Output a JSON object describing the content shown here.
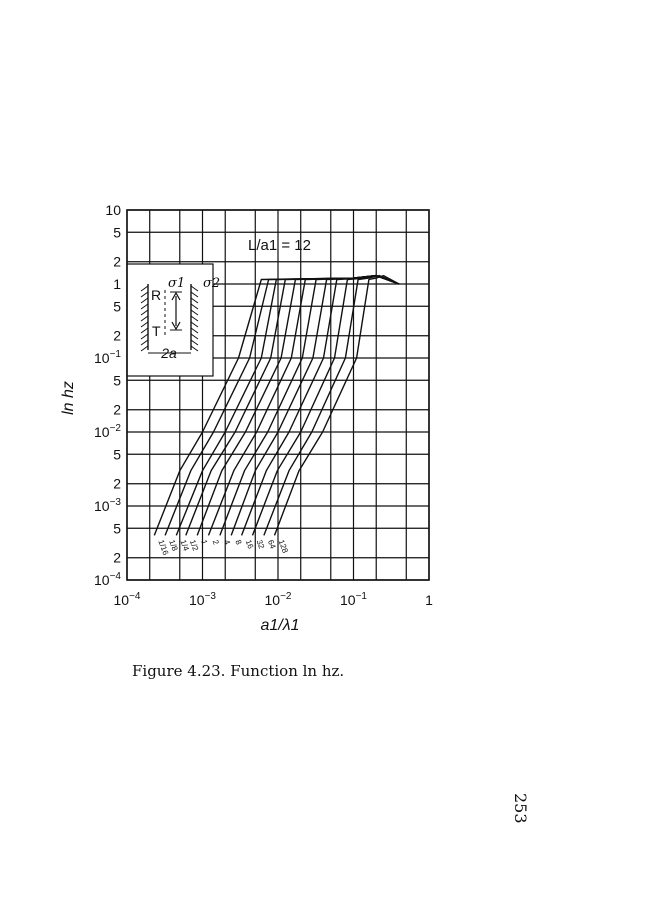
{
  "chart_data": {
    "type": "line",
    "title": "",
    "xlabel": "a1/λ1",
    "ylabel": "ln hz",
    "x_scale": "log",
    "y_scale": "log",
    "xlim": [
      0.0001,
      1
    ],
    "ylim": [
      0.0001,
      10
    ],
    "grid": true,
    "x_ticks": [
      {
        "base": "10",
        "exp": "−4"
      },
      {
        "base": "10",
        "exp": "−3"
      },
      {
        "base": "10",
        "exp": "−2"
      },
      {
        "base": "10",
        "exp": "−1"
      },
      {
        "base": "1",
        "exp": ""
      }
    ],
    "y_ticks": [
      {
        "base": "10",
        "exp": "",
        "value": 10
      },
      {
        "base": "5",
        "exp": "",
        "value": 5
      },
      {
        "base": "2",
        "exp": "",
        "value": 2
      },
      {
        "base": "1",
        "exp": "",
        "value": 1
      },
      {
        "base": "5",
        "exp": "",
        "value": 0.5
      },
      {
        "base": "2",
        "exp": "",
        "value": 0.2
      },
      {
        "base": "10",
        "exp": "−1",
        "value": 0.1
      },
      {
        "base": "5",
        "exp": "",
        "value": 0.05
      },
      {
        "base": "2",
        "exp": "",
        "value": 0.02
      },
      {
        "base": "10",
        "exp": "−2",
        "value": 0.01
      },
      {
        "base": "5",
        "exp": "",
        "value": 0.005
      },
      {
        "base": "2",
        "exp": "",
        "value": 0.002
      },
      {
        "base": "10",
        "exp": "−3",
        "value": 0.001
      },
      {
        "base": "5",
        "exp": "",
        "value": 0.0005
      },
      {
        "base": "2",
        "exp": "",
        "value": 0.0002
      },
      {
        "base": "10",
        "exp": "−4",
        "value": 0.0001
      }
    ],
    "parameter_annotation": "L/a1 = 12",
    "series": [
      {
        "name": "1/16",
        "x": [
          0.00023,
          0.0005,
          0.001,
          0.003,
          0.006,
          0.1,
          0.2,
          0.4
        ],
        "y": [
          0.0004,
          0.003,
          0.01,
          0.1,
          1.15,
          1.2,
          1.3,
          1.0
        ]
      },
      {
        "name": "1/8",
        "x": [
          0.00032,
          0.0007,
          0.0014,
          0.0042,
          0.0075,
          0.1,
          0.2,
          0.4
        ],
        "y": [
          0.0004,
          0.003,
          0.01,
          0.1,
          1.15,
          1.2,
          1.3,
          1.0
        ]
      },
      {
        "name": "1/4",
        "x": [
          0.00045,
          0.001,
          0.002,
          0.006,
          0.0095,
          0.1,
          0.2,
          0.4
        ],
        "y": [
          0.0004,
          0.003,
          0.01,
          0.1,
          1.15,
          1.2,
          1.3,
          1.0
        ]
      },
      {
        "name": "1/2",
        "x": [
          0.0006,
          0.0013,
          0.0027,
          0.008,
          0.0125,
          0.1,
          0.2,
          0.4
        ],
        "y": [
          0.0004,
          0.003,
          0.01,
          0.1,
          1.15,
          1.2,
          1.3,
          1.0
        ]
      },
      {
        "name": "1",
        "x": [
          0.00085,
          0.0018,
          0.0037,
          0.011,
          0.017,
          0.1,
          0.2,
          0.4
        ],
        "y": [
          0.0004,
          0.003,
          0.01,
          0.1,
          1.15,
          1.2,
          1.3,
          1.0
        ]
      },
      {
        "name": "2",
        "x": [
          0.0012,
          0.0026,
          0.0052,
          0.015,
          0.023,
          0.1,
          0.2,
          0.4
        ],
        "y": [
          0.0004,
          0.003,
          0.01,
          0.1,
          1.15,
          1.2,
          1.3,
          1.0
        ]
      },
      {
        "name": "4",
        "x": [
          0.0017,
          0.0036,
          0.0073,
          0.021,
          0.032,
          0.11,
          0.2,
          0.4
        ],
        "y": [
          0.0004,
          0.003,
          0.01,
          0.1,
          1.15,
          1.2,
          1.3,
          1.0
        ]
      },
      {
        "name": "8",
        "x": [
          0.0024,
          0.005,
          0.01,
          0.029,
          0.044,
          0.12,
          0.2,
          0.4
        ],
        "y": [
          0.0004,
          0.003,
          0.01,
          0.1,
          1.15,
          1.2,
          1.3,
          1.0
        ]
      },
      {
        "name": "16",
        "x": [
          0.0033,
          0.007,
          0.014,
          0.04,
          0.06,
          0.13,
          0.2,
          0.4
        ],
        "y": [
          0.0004,
          0.003,
          0.01,
          0.1,
          1.15,
          1.2,
          1.3,
          1.0
        ]
      },
      {
        "name": "32",
        "x": [
          0.0046,
          0.0098,
          0.02,
          0.056,
          0.083,
          0.14,
          0.2,
          0.4
        ],
        "y": [
          0.0004,
          0.003,
          0.01,
          0.1,
          1.15,
          1.2,
          1.3,
          1.0
        ]
      },
      {
        "name": "64",
        "x": [
          0.0065,
          0.014,
          0.028,
          0.078,
          0.115,
          0.16,
          0.22,
          0.4
        ],
        "y": [
          0.0004,
          0.003,
          0.01,
          0.1,
          1.15,
          1.2,
          1.3,
          1.0
        ]
      },
      {
        "name": "128",
        "x": [
          0.009,
          0.019,
          0.039,
          0.11,
          0.16,
          0.2,
          0.25,
          0.4
        ],
        "y": [
          0.0004,
          0.003,
          0.01,
          0.1,
          1.15,
          1.2,
          1.3,
          1.0
        ]
      }
    ]
  },
  "inset": {
    "label_R": "R",
    "label_T": "T",
    "sigma1": "σ1",
    "sigma2": "σ2",
    "dimension": "2a"
  },
  "caption": "Figure 4.23. Function ln hz.",
  "page_number": "253"
}
